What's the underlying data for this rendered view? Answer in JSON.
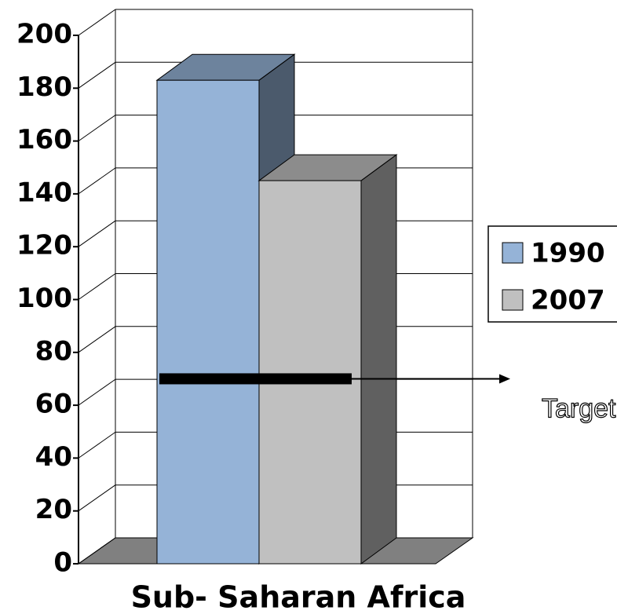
{
  "chart_data": {
    "type": "bar3d",
    "categories": [
      "Sub- Saharan Africa"
    ],
    "series": [
      {
        "name": "1990",
        "color": "#95b3d7",
        "values": [
          183
        ]
      },
      {
        "name": "2007",
        "color": "#c0c0c0",
        "values": [
          145
        ]
      }
    ],
    "target": {
      "label": "Target",
      "value": 70
    },
    "ylim": [
      0,
      200
    ],
    "yticks": [
      0,
      20,
      40,
      60,
      80,
      100,
      120,
      140,
      160,
      180,
      200
    ],
    "grid": true
  }
}
